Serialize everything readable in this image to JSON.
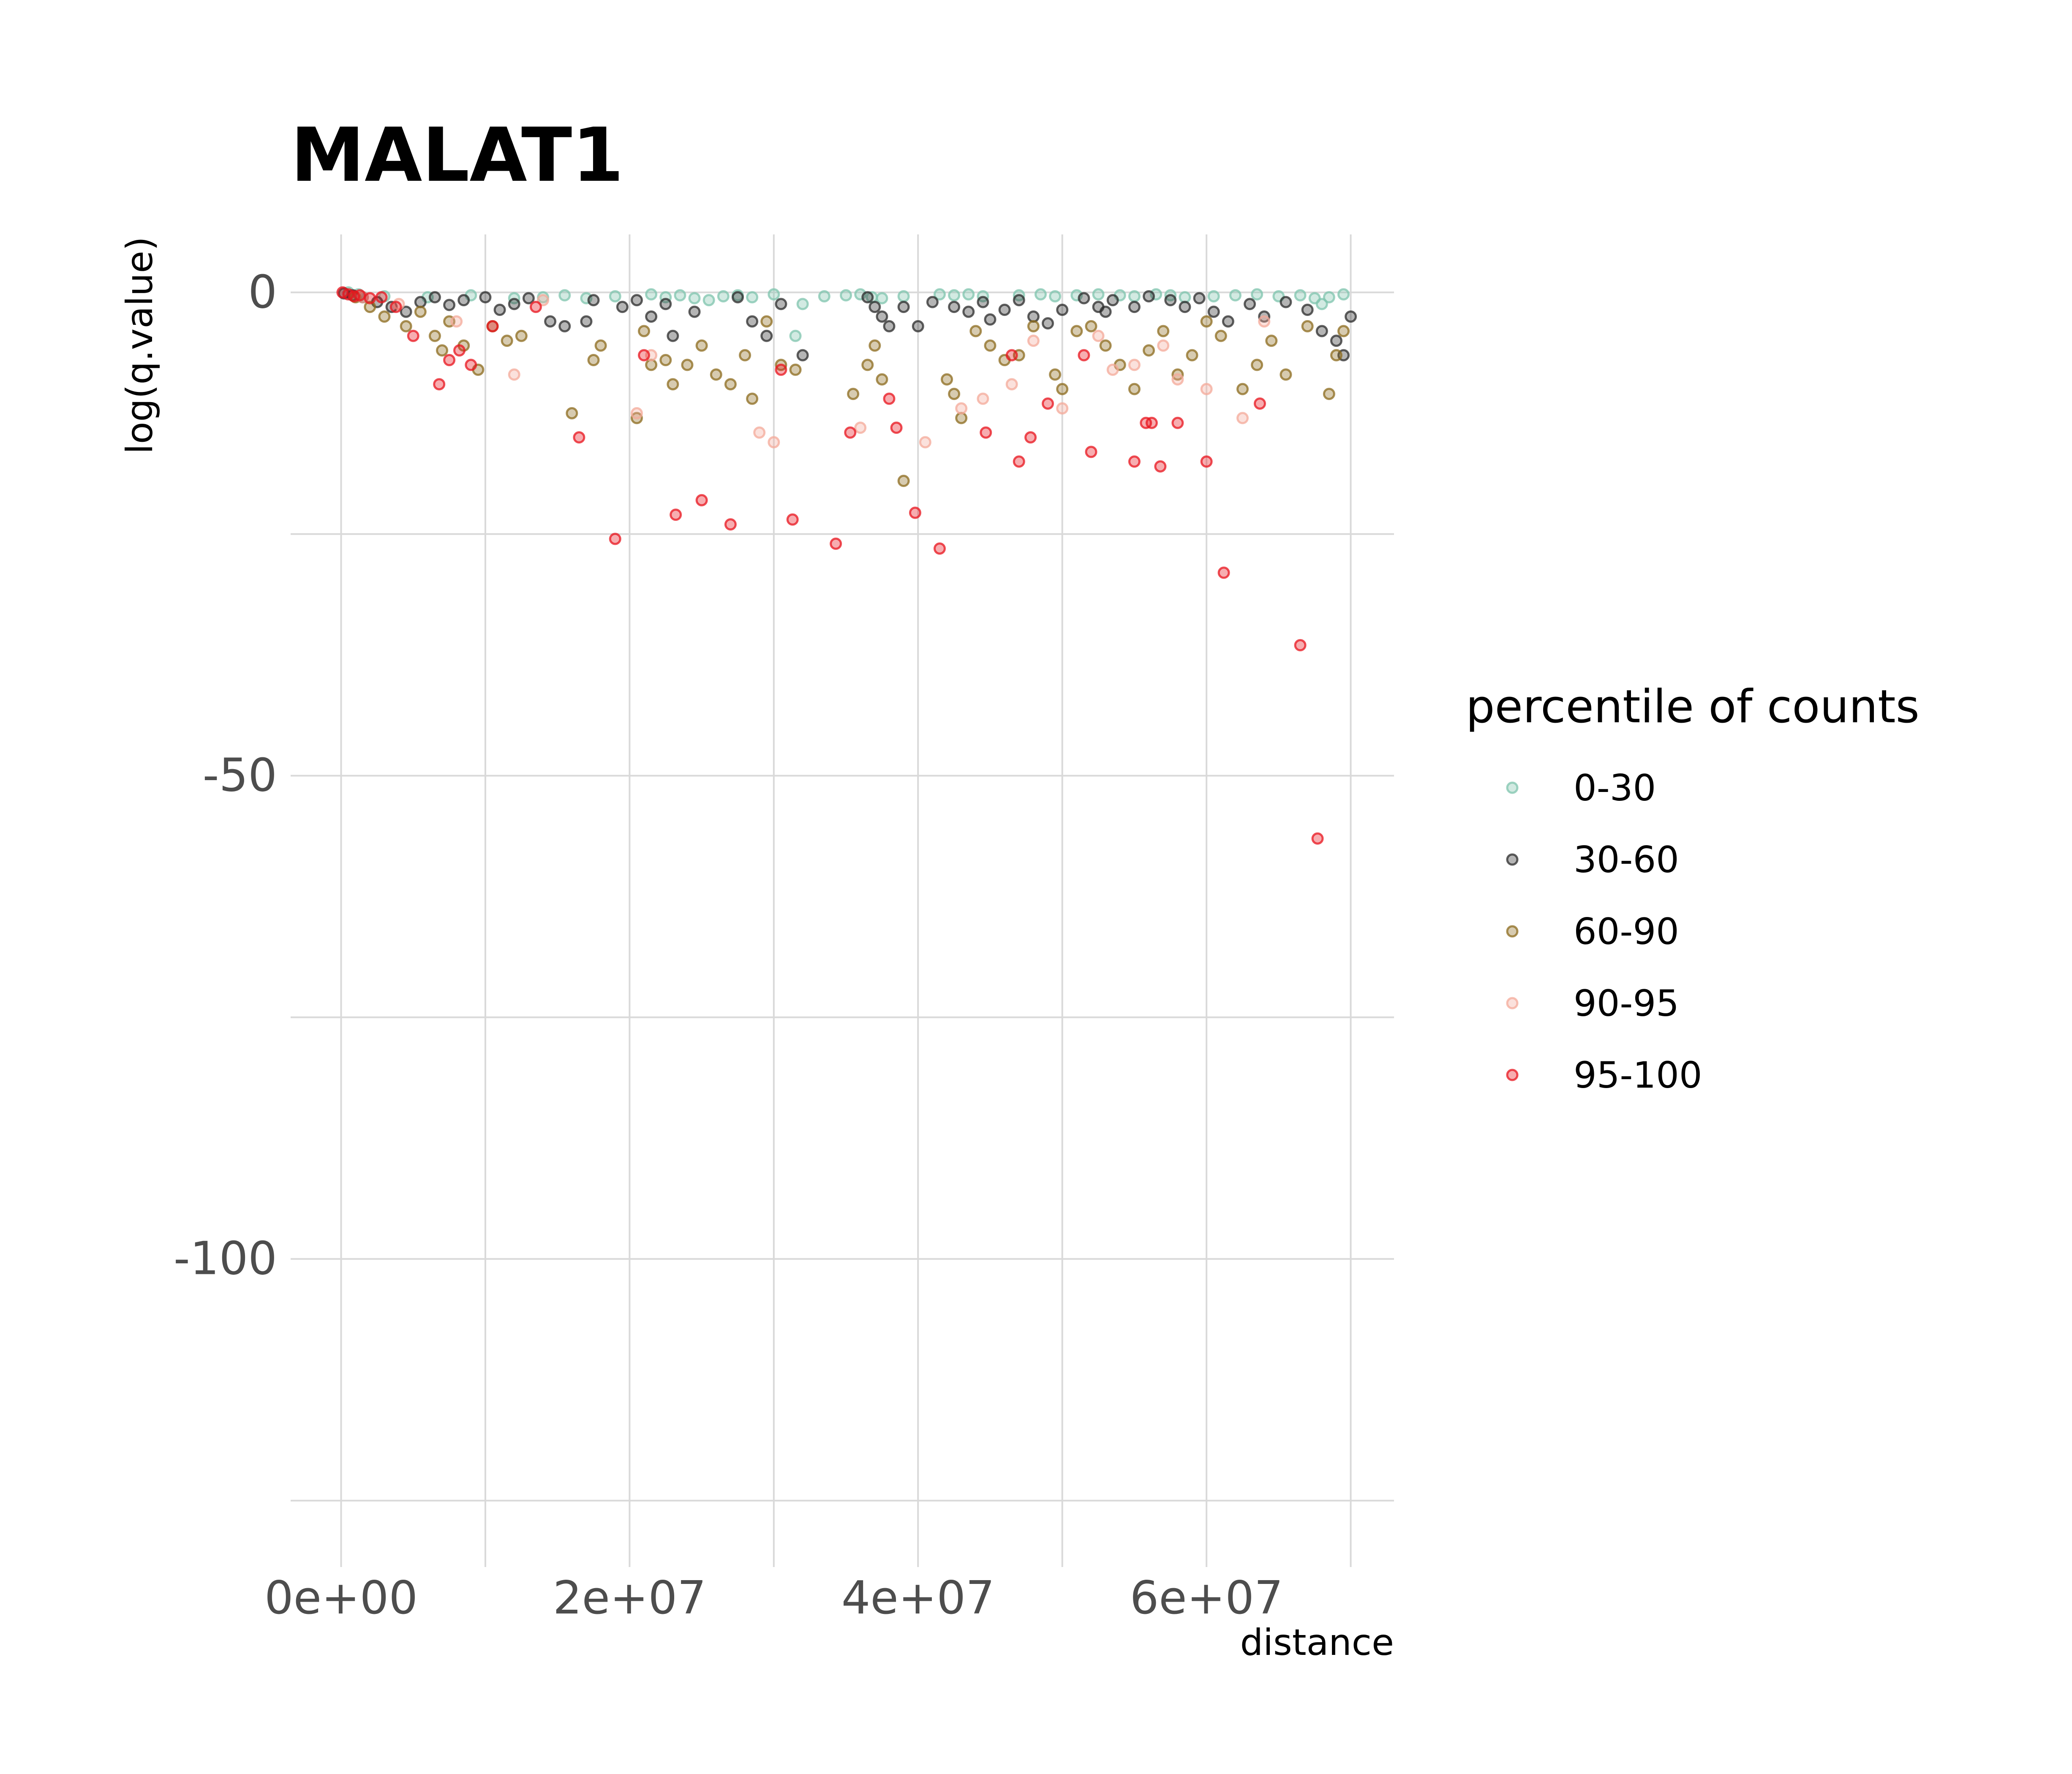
{
  "chart_data": {
    "type": "scatter",
    "title": "MALAT1",
    "xlabel": "distance",
    "ylabel": "log(q.value)",
    "xlim": [
      -3500000,
      73000000
    ],
    "ylim": [
      -131,
      6
    ],
    "x_ticks": [
      {
        "value": 0,
        "label": "0e+00"
      },
      {
        "value": 20000000,
        "label": "2e+07"
      },
      {
        "value": 40000000,
        "label": "4e+07"
      },
      {
        "value": 60000000,
        "label": "6e+07"
      }
    ],
    "x_minor_ticks": [
      10000000,
      30000000,
      50000000,
      70000000
    ],
    "y_ticks": [
      {
        "value": 0,
        "label": "0"
      },
      {
        "value": -50,
        "label": "-50"
      },
      {
        "value": -100,
        "label": "-100"
      }
    ],
    "y_minor_ticks": [
      -25,
      -75,
      -125
    ],
    "grid": true,
    "legend": {
      "title": "percentile of counts",
      "position": "right",
      "entries": [
        {
          "name": "0-30",
          "color": "#7fc4ad"
        },
        {
          "name": "30-60",
          "color": "#2b2b2b"
        },
        {
          "name": "60-90",
          "color": "#8c6b1e"
        },
        {
          "name": "90-95",
          "color": "#f4a99a"
        },
        {
          "name": "95-100",
          "color": "#e8141e"
        }
      ]
    },
    "series": [
      {
        "name": "0-30",
        "color": "#7fc4ad",
        "points": [
          [
            500000,
            0
          ],
          [
            1200000,
            -0.2
          ],
          [
            3000000,
            -0.4
          ],
          [
            6000000,
            -0.5
          ],
          [
            9000000,
            -0.3
          ],
          [
            12000000,
            -0.6
          ],
          [
            14000000,
            -0.5
          ],
          [
            15500000,
            -0.3
          ],
          [
            17000000,
            -0.6
          ],
          [
            19000000,
            -0.4
          ],
          [
            21500000,
            -0.2
          ],
          [
            22500000,
            -0.5
          ],
          [
            23500000,
            -0.3
          ],
          [
            24500000,
            -0.6
          ],
          [
            25500000,
            -0.8
          ],
          [
            26500000,
            -0.4
          ],
          [
            27500000,
            -0.3
          ],
          [
            28500000,
            -0.5
          ],
          [
            30000000,
            -0.2
          ],
          [
            31500000,
            -4.5
          ],
          [
            32000000,
            -1.2
          ],
          [
            33500000,
            -0.4
          ],
          [
            35000000,
            -0.3
          ],
          [
            36000000,
            -0.2
          ],
          [
            36800000,
            -0.5
          ],
          [
            37500000,
            -0.6
          ],
          [
            39000000,
            -0.4
          ],
          [
            41500000,
            -0.2
          ],
          [
            42500000,
            -0.3
          ],
          [
            43500000,
            -0.2
          ],
          [
            44500000,
            -0.4
          ],
          [
            47000000,
            -0.3
          ],
          [
            48500000,
            -0.2
          ],
          [
            49500000,
            -0.4
          ],
          [
            51000000,
            -0.3
          ],
          [
            52500000,
            -0.2
          ],
          [
            54000000,
            -0.3
          ],
          [
            55000000,
            -0.4
          ],
          [
            56500000,
            -0.2
          ],
          [
            57500000,
            -0.3
          ],
          [
            58500000,
            -0.5
          ],
          [
            60500000,
            -0.4
          ],
          [
            62000000,
            -0.3
          ],
          [
            63500000,
            -0.2
          ],
          [
            65000000,
            -0.4
          ],
          [
            66500000,
            -0.3
          ],
          [
            67500000,
            -0.6
          ],
          [
            68000000,
            -1.2
          ],
          [
            68500000,
            -0.5
          ],
          [
            69500000,
            -0.2
          ]
        ]
      },
      {
        "name": "30-60",
        "color": "#2b2b2b",
        "points": [
          [
            200000,
            -0.1
          ],
          [
            800000,
            -0.3
          ],
          [
            1500000,
            -0.5
          ],
          [
            2500000,
            -1.0
          ],
          [
            3500000,
            -1.5
          ],
          [
            4500000,
            -2.0
          ],
          [
            5500000,
            -1.0
          ],
          [
            6500000,
            -0.5
          ],
          [
            7500000,
            -1.3
          ],
          [
            8500000,
            -0.8
          ],
          [
            10000000,
            -0.5
          ],
          [
            11000000,
            -1.8
          ],
          [
            12000000,
            -1.2
          ],
          [
            13000000,
            -0.6
          ],
          [
            14500000,
            -3.0
          ],
          [
            15500000,
            -3.5
          ],
          [
            17000000,
            -3.0
          ],
          [
            17500000,
            -0.8
          ],
          [
            19500000,
            -1.5
          ],
          [
            20500000,
            -0.8
          ],
          [
            21500000,
            -2.5
          ],
          [
            22500000,
            -1.2
          ],
          [
            23000000,
            -4.5
          ],
          [
            24500000,
            -2.0
          ],
          [
            27500000,
            -0.5
          ],
          [
            28500000,
            -3.0
          ],
          [
            29500000,
            -4.5
          ],
          [
            30500000,
            -1.2
          ],
          [
            32000000,
            -6.5
          ],
          [
            36500000,
            -0.5
          ],
          [
            37000000,
            -1.5
          ],
          [
            37500000,
            -2.5
          ],
          [
            38000000,
            -3.5
          ],
          [
            39000000,
            -1.5
          ],
          [
            40000000,
            -3.5
          ],
          [
            41000000,
            -1.0
          ],
          [
            42500000,
            -1.5
          ],
          [
            43500000,
            -2.0
          ],
          [
            44500000,
            -1.0
          ],
          [
            45000000,
            -2.8
          ],
          [
            46000000,
            -1.8
          ],
          [
            47000000,
            -0.8
          ],
          [
            48000000,
            -2.5
          ],
          [
            49000000,
            -3.2
          ],
          [
            50000000,
            -1.8
          ],
          [
            51500000,
            -0.6
          ],
          [
            52500000,
            -1.5
          ],
          [
            53000000,
            -2.0
          ],
          [
            53500000,
            -0.8
          ],
          [
            55000000,
            -1.5
          ],
          [
            56000000,
            -0.4
          ],
          [
            57500000,
            -0.8
          ],
          [
            58500000,
            -1.5
          ],
          [
            59500000,
            -0.6
          ],
          [
            60500000,
            -2.0
          ],
          [
            61500000,
            -3.0
          ],
          [
            63000000,
            -1.2
          ],
          [
            64000000,
            -2.5
          ],
          [
            65500000,
            -1.0
          ],
          [
            67000000,
            -1.8
          ],
          [
            68000000,
            -4.0
          ],
          [
            69000000,
            -5.0
          ],
          [
            69500000,
            -6.5
          ],
          [
            70000000,
            -2.5
          ]
        ]
      },
      {
        "name": "60-90",
        "color": "#8c6b1e",
        "points": [
          [
            1000000,
            -0.5
          ],
          [
            2000000,
            -1.5
          ],
          [
            3000000,
            -2.5
          ],
          [
            4500000,
            -3.5
          ],
          [
            5500000,
            -2.0
          ],
          [
            6500000,
            -4.5
          ],
          [
            7000000,
            -6.0
          ],
          [
            7500000,
            -3.0
          ],
          [
            8500000,
            -5.5
          ],
          [
            9500000,
            -8.0
          ],
          [
            10500000,
            -3.5
          ],
          [
            11500000,
            -5.0
          ],
          [
            12500000,
            -4.5
          ],
          [
            16000000,
            -12.5
          ],
          [
            17500000,
            -7.0
          ],
          [
            18000000,
            -5.5
          ],
          [
            20500000,
            -13.0
          ],
          [
            21000000,
            -4.0
          ],
          [
            21500000,
            -7.5
          ],
          [
            22500000,
            -7.0
          ],
          [
            23000000,
            -9.5
          ],
          [
            24000000,
            -7.5
          ],
          [
            25000000,
            -5.5
          ],
          [
            26000000,
            -8.5
          ],
          [
            27000000,
            -9.5
          ],
          [
            28000000,
            -6.5
          ],
          [
            28500000,
            -11.0
          ],
          [
            29500000,
            -3.0
          ],
          [
            30500000,
            -7.5
          ],
          [
            31500000,
            -8.0
          ],
          [
            35500000,
            -10.5
          ],
          [
            36500000,
            -7.5
          ],
          [
            37000000,
            -5.5
          ],
          [
            37500000,
            -9.0
          ],
          [
            39000000,
            -19.5
          ],
          [
            42000000,
            -9.0
          ],
          [
            42500000,
            -10.5
          ],
          [
            43000000,
            -13.0
          ],
          [
            44000000,
            -4.0
          ],
          [
            45000000,
            -5.5
          ],
          [
            46000000,
            -7.0
          ],
          [
            47000000,
            -6.5
          ],
          [
            48000000,
            -3.5
          ],
          [
            49500000,
            -8.5
          ],
          [
            50000000,
            -10.0
          ],
          [
            51000000,
            -4.0
          ],
          [
            52000000,
            -3.5
          ],
          [
            53000000,
            -5.5
          ],
          [
            54000000,
            -7.5
          ],
          [
            55000000,
            -10.0
          ],
          [
            56000000,
            -6.0
          ],
          [
            57000000,
            -4.0
          ],
          [
            58000000,
            -8.5
          ],
          [
            59000000,
            -6.5
          ],
          [
            60000000,
            -3.0
          ],
          [
            61000000,
            -4.5
          ],
          [
            62500000,
            -10.0
          ],
          [
            63500000,
            -7.5
          ],
          [
            64500000,
            -5.0
          ],
          [
            65500000,
            -8.5
          ],
          [
            67000000,
            -3.5
          ],
          [
            68500000,
            -10.5
          ],
          [
            69000000,
            -6.5
          ],
          [
            69500000,
            -4.0
          ]
        ]
      },
      {
        "name": "90-95",
        "color": "#f4a99a",
        "points": [
          [
            1500000,
            -0.5
          ],
          [
            4000000,
            -1.2
          ],
          [
            8000000,
            -3.0
          ],
          [
            12000000,
            -8.5
          ],
          [
            14000000,
            -0.8
          ],
          [
            20500000,
            -12.5
          ],
          [
            21500000,
            -6.5
          ],
          [
            29000000,
            -14.5
          ],
          [
            30000000,
            -15.5
          ],
          [
            36000000,
            -14.0
          ],
          [
            40500000,
            -15.5
          ],
          [
            43000000,
            -12.0
          ],
          [
            44500000,
            -11.0
          ],
          [
            46500000,
            -9.5
          ],
          [
            48000000,
            -5.0
          ],
          [
            50000000,
            -12.0
          ],
          [
            52500000,
            -4.5
          ],
          [
            53500000,
            -8.0
          ],
          [
            55000000,
            -7.5
          ],
          [
            57000000,
            -5.5
          ],
          [
            58000000,
            -9.0
          ],
          [
            60000000,
            -10.0
          ],
          [
            62500000,
            -13.0
          ],
          [
            64000000,
            -3.0
          ]
        ]
      },
      {
        "name": "95-100",
        "color": "#e8141e",
        "points": [
          [
            100000,
            0
          ],
          [
            500000,
            -0.2
          ],
          [
            900000,
            -0.4
          ],
          [
            1300000,
            -0.3
          ],
          [
            2000000,
            -0.6
          ],
          [
            2800000,
            -0.5
          ],
          [
            3800000,
            -1.5
          ],
          [
            5000000,
            -4.5
          ],
          [
            6800000,
            -9.5
          ],
          [
            7500000,
            -7.0
          ],
          [
            8200000,
            -6.0
          ],
          [
            9000000,
            -7.5
          ],
          [
            10500000,
            -3.5
          ],
          [
            13500000,
            -1.5
          ],
          [
            16500000,
            -15.0
          ],
          [
            19000000,
            -25.5
          ],
          [
            21000000,
            -6.5
          ],
          [
            23200000,
            -23.0
          ],
          [
            25000000,
            -21.5
          ],
          [
            27000000,
            -24.0
          ],
          [
            30500000,
            -8.0
          ],
          [
            31300000,
            -23.5
          ],
          [
            34300000,
            -26.0
          ],
          [
            35300000,
            -14.5
          ],
          [
            38000000,
            -11.0
          ],
          [
            38500000,
            -14.0
          ],
          [
            39800000,
            -22.8
          ],
          [
            41500000,
            -26.5
          ],
          [
            44700000,
            -14.5
          ],
          [
            46500000,
            -6.5
          ],
          [
            47000000,
            -17.5
          ],
          [
            47800000,
            -15.0
          ],
          [
            49000000,
            -11.5
          ],
          [
            51500000,
            -6.5
          ],
          [
            52000000,
            -16.5
          ],
          [
            55000000,
            -17.5
          ],
          [
            55800000,
            -13.5
          ],
          [
            56200000,
            -13.5
          ],
          [
            56800000,
            -18.0
          ],
          [
            58000000,
            -13.5
          ],
          [
            60000000,
            -17.5
          ],
          [
            61200000,
            -29.0
          ],
          [
            63700000,
            -11.5
          ],
          [
            66500000,
            -36.5
          ],
          [
            67700000,
            -56.5
          ]
        ]
      }
    ]
  }
}
